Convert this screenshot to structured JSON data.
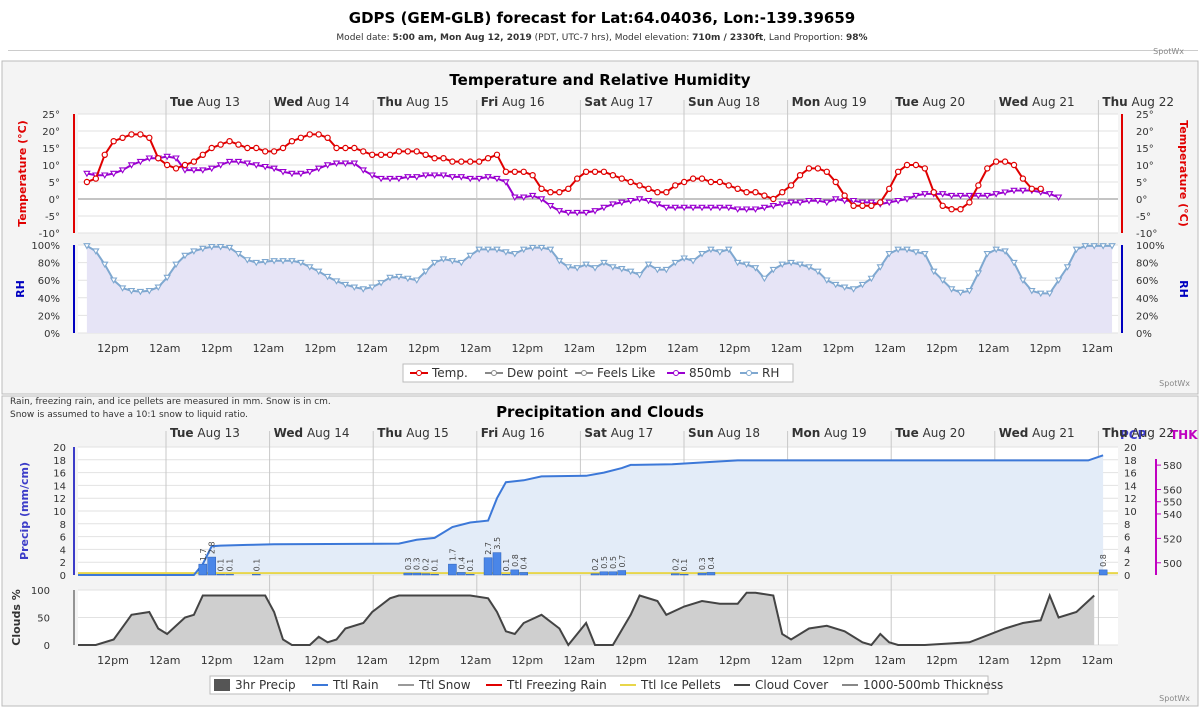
{
  "header": {
    "title": "GDPS (GEM-GLB) forecast for Lat:64.04036, Lon:-139.39659",
    "subtitle_prefix": "Model date: ",
    "model_time": "5:00 am, Mon Aug 12, 2019",
    "subtitle_mid": " (PDT, UTC-7 hrs), Model elevation: ",
    "elevation": "710m / 2330ft",
    "subtitle_mid2": ", Land Proportion: ",
    "land": "98%",
    "credit": "SpotWx"
  },
  "days": [
    {
      "dow": "Tue",
      "date": "Aug 13"
    },
    {
      "dow": "Wed",
      "date": "Aug 14"
    },
    {
      "dow": "Thu",
      "date": "Aug 15"
    },
    {
      "dow": "Fri",
      "date": "Aug 16"
    },
    {
      "dow": "Sat",
      "date": "Aug 17"
    },
    {
      "dow": "Sun",
      "date": "Aug 18"
    },
    {
      "dow": "Mon",
      "date": "Aug 19"
    },
    {
      "dow": "Tue",
      "date": "Aug 20"
    },
    {
      "dow": "Wed",
      "date": "Aug 21"
    },
    {
      "dow": "Thu",
      "date": "Aug 22"
    }
  ],
  "xlabels": [
    "12pm",
    "12am",
    "12pm",
    "12am",
    "12pm",
    "12am",
    "12pm",
    "12am",
    "12pm",
    "12am",
    "12pm",
    "12am",
    "12pm",
    "12am",
    "12pm",
    "12am",
    "12pm",
    "12am",
    "12pm",
    "12am"
  ],
  "colors": {
    "temp": "#e00000",
    "dew": "#888888",
    "feels": "#888888",
    "t850": "#9a00d0",
    "rh": "#7fa8d0",
    "rain": "#3c78d8",
    "snow": "#999999",
    "frz": "#e00000",
    "ice": "#e8d64a",
    "cloud": "#444444",
    "thk": "#888888",
    "thk_axis": "#c000c0",
    "precip_axis": "#3c3cc8",
    "bar": "#4a86e8"
  },
  "chart_data": [
    {
      "type": "line",
      "title": "Temperature and Relative Humidity",
      "x_start_hour": 0,
      "x_end_hour": 249,
      "step_hours": 3,
      "temp_axis": {
        "label": "Temperature (°C)",
        "ticks": [
          "25°",
          "20°",
          "15°",
          "10°",
          "5°",
          "0°",
          "-5°",
          "-10°"
        ],
        "ylim": [
          -10,
          25
        ]
      },
      "rh_axis": {
        "label": "RH",
        "ticks": [
          "100%",
          "80%",
          "60%",
          "40%",
          "20%",
          "0%"
        ],
        "ylim": [
          0,
          100
        ]
      },
      "series": [
        {
          "name": "Temp.",
          "values": [
            5,
            6,
            13,
            17,
            18,
            19,
            19,
            18,
            12,
            10,
            9,
            10,
            11,
            13,
            15,
            16,
            17,
            16,
            15,
            15,
            14,
            14,
            15,
            17,
            18,
            19,
            19,
            18,
            15,
            15,
            15,
            14,
            13,
            13,
            13,
            14,
            14,
            14,
            13,
            12,
            12,
            11,
            11,
            11,
            11,
            12,
            13,
            8,
            8,
            8,
            7,
            3,
            2,
            2,
            3,
            6,
            8,
            8,
            8,
            7,
            6,
            5,
            4,
            3,
            2,
            2,
            4,
            5,
            6,
            6,
            5,
            5,
            4,
            3,
            2,
            2,
            1,
            0,
            2,
            4,
            7,
            9,
            9,
            8,
            5,
            1,
            -2,
            -2,
            -2,
            -1,
            3,
            8,
            10,
            10,
            9,
            2,
            -2,
            -3,
            -3,
            -1,
            4,
            9,
            11,
            11,
            10,
            6,
            3,
            3
          ]
        },
        {
          "name": "Dew point",
          "values": []
        },
        {
          "name": "Feels Like",
          "values": []
        },
        {
          "name": "850mb",
          "values": [
            7.5,
            7,
            7,
            7.5,
            8.5,
            10,
            11,
            12,
            12,
            12.5,
            12,
            8.5,
            8.5,
            8.5,
            9,
            10,
            11,
            11,
            10.5,
            10,
            9.5,
            9,
            8,
            7.5,
            7.5,
            8,
            9,
            10,
            10.5,
            10.5,
            10.5,
            8.5,
            7,
            6,
            6,
            6,
            6.5,
            6.5,
            7,
            7,
            7,
            6.5,
            6.5,
            6,
            6,
            6.5,
            6,
            5,
            0.5,
            0.5,
            1,
            0,
            -2,
            -3.5,
            -4,
            -4,
            -4,
            -3.5,
            -2.5,
            -1.5,
            -1,
            -0.5,
            0,
            -0.5,
            -1.5,
            -2.5,
            -2.5,
            -2.5,
            -2.5,
            -2.5,
            -2.5,
            -2.5,
            -2.5,
            -3,
            -3,
            -3,
            -2.5,
            -2,
            -1.5,
            -1,
            -1,
            -0.5,
            -0.5,
            -1,
            0,
            -0.5,
            -0.5,
            -1,
            -1,
            -1.5,
            -1,
            -0.5,
            0,
            1,
            1.5,
            1.5,
            1.5,
            1,
            1,
            1,
            1,
            1,
            1.5,
            2,
            2.5,
            2.5,
            2.5,
            2,
            1.5,
            0.5
          ]
        },
        {
          "name": "RH",
          "values": [
            99,
            93,
            78,
            60,
            51,
            48,
            47,
            48,
            52,
            63,
            78,
            88,
            93,
            96,
            98,
            98,
            97,
            90,
            83,
            80,
            81,
            82,
            82,
            82,
            80,
            75,
            70,
            64,
            59,
            55,
            52,
            50,
            52,
            57,
            63,
            64,
            62,
            60,
            70,
            80,
            84,
            82,
            80,
            88,
            95,
            95,
            95,
            92,
            90,
            95,
            97,
            97,
            95,
            82,
            75,
            74,
            78,
            74,
            80,
            75,
            73,
            70,
            66,
            78,
            72,
            72,
            80,
            85,
            82,
            90,
            95,
            92,
            95,
            80,
            78,
            74,
            62,
            72,
            78,
            80,
            78,
            75,
            70,
            60,
            55,
            52,
            50,
            55,
            62,
            75,
            90,
            95,
            95,
            92,
            90,
            70,
            60,
            50,
            46,
            48,
            68,
            90,
            95,
            93,
            80,
            60,
            48,
            45,
            45,
            60,
            75,
            95,
            99,
            99,
            99,
            99
          ]
        }
      ]
    },
    {
      "type": "bar",
      "title": "Precipitation and Clouds",
      "notes": [
        "Rain, freezing rain, and ice pellets are measured in mm. Snow is in cm.",
        "Snow is assumed to have a 10:1 snow to liquid ratio."
      ],
      "precip_axis": {
        "label": "Precip (mm/cm)",
        "ticks": [
          "20",
          "18",
          "16",
          "14",
          "12",
          "10",
          "8",
          "6",
          "4",
          "2",
          "0"
        ],
        "ylim": [
          0,
          20
        ]
      },
      "pcp_label": "PCP",
      "thk_axis": {
        "label": "THK",
        "ticks": [
          "580",
          "560",
          "550",
          "540",
          "520",
          "500"
        ],
        "values": [
          580,
          560,
          550,
          540,
          520,
          500
        ]
      },
      "clouds_axis": {
        "label": "Clouds %",
        "ticks": [
          "100",
          "50",
          "0"
        ],
        "ylim": [
          0,
          100
        ]
      },
      "bars": [
        {
          "hour": 42,
          "value": 1.7,
          "label": "1.7"
        },
        {
          "hour": 45,
          "value": 2.8,
          "label": "2.8"
        },
        {
          "hour": 48,
          "value": 0.1,
          "label": "0.1"
        },
        {
          "hour": 51,
          "value": 0.1,
          "label": "0.1"
        },
        {
          "hour": 60,
          "value": 0.1,
          "label": "0.1"
        },
        {
          "hour": 111,
          "value": 0.3,
          "label": "0.3"
        },
        {
          "hour": 114,
          "value": 0.3,
          "label": "0.3"
        },
        {
          "hour": 117,
          "value": 0.2,
          "label": "0.2"
        },
        {
          "hour": 120,
          "value": 0.1,
          "label": "0.1"
        },
        {
          "hour": 126,
          "value": 1.7,
          "label": "1.7"
        },
        {
          "hour": 129,
          "value": 0.4,
          "label": "0.4"
        },
        {
          "hour": 132,
          "value": 0.1,
          "label": "0.1"
        },
        {
          "hour": 138,
          "value": 2.7,
          "label": "2.7"
        },
        {
          "hour": 141,
          "value": 3.5,
          "label": "3.5"
        },
        {
          "hour": 144,
          "value": 0.1,
          "label": "0.1"
        },
        {
          "hour": 147,
          "value": 0.8,
          "label": "0.8"
        },
        {
          "hour": 150,
          "value": 0.4,
          "label": "0.4"
        },
        {
          "hour": 174,
          "value": 0.2,
          "label": "0.2"
        },
        {
          "hour": 177,
          "value": 0.5,
          "label": "0.5"
        },
        {
          "hour": 180,
          "value": 0.5,
          "label": "0.5"
        },
        {
          "hour": 183,
          "value": 0.7,
          "label": "0.7"
        },
        {
          "hour": 201,
          "value": 0.2,
          "label": "0.2"
        },
        {
          "hour": 204,
          "value": 0.1,
          "label": "0.1"
        },
        {
          "hour": 210,
          "value": 0.3,
          "label": "0.3"
        },
        {
          "hour": 213,
          "value": 0.4,
          "label": "0.4"
        },
        {
          "hour": 345,
          "value": 0.8,
          "label": "0.8"
        }
      ],
      "ttl_rain": [
        [
          0,
          0
        ],
        [
          39,
          0
        ],
        [
          42,
          1.7
        ],
        [
          45,
          4.5
        ],
        [
          48,
          4.6
        ],
        [
          57,
          4.7
        ],
        [
          66,
          4.8
        ],
        [
          108,
          4.9
        ],
        [
          114,
          5.5
        ],
        [
          120,
          5.8
        ],
        [
          126,
          7.5
        ],
        [
          132,
          8.2
        ],
        [
          138,
          8.5
        ],
        [
          141,
          12.0
        ],
        [
          144,
          14.5
        ],
        [
          150,
          14.8
        ],
        [
          156,
          15.4
        ],
        [
          171,
          15.5
        ],
        [
          177,
          16.0
        ],
        [
          183,
          16.7
        ],
        [
          186,
          17.2
        ],
        [
          200,
          17.3
        ],
        [
          214,
          17.7
        ],
        [
          222,
          17.9
        ],
        [
          340,
          17.9
        ],
        [
          345,
          18.7
        ]
      ],
      "cloud_cover": [
        [
          0,
          0
        ],
        [
          6,
          0
        ],
        [
          12,
          10
        ],
        [
          18,
          55
        ],
        [
          24,
          60
        ],
        [
          27,
          30
        ],
        [
          30,
          20
        ],
        [
          36,
          50
        ],
        [
          39,
          55
        ],
        [
          42,
          90
        ],
        [
          48,
          90
        ],
        [
          63,
          90
        ],
        [
          66,
          60
        ],
        [
          69,
          10
        ],
        [
          72,
          0
        ],
        [
          78,
          0
        ],
        [
          81,
          15
        ],
        [
          84,
          5
        ],
        [
          87,
          10
        ],
        [
          90,
          30
        ],
        [
          96,
          40
        ],
        [
          99,
          60
        ],
        [
          105,
          85
        ],
        [
          108,
          90
        ],
        [
          126,
          90
        ],
        [
          132,
          90
        ],
        [
          138,
          85
        ],
        [
          141,
          60
        ],
        [
          144,
          25
        ],
        [
          147,
          20
        ],
        [
          150,
          40
        ],
        [
          156,
          55
        ],
        [
          162,
          30
        ],
        [
          165,
          0
        ],
        [
          168,
          20
        ],
        [
          171,
          40
        ],
        [
          174,
          0
        ],
        [
          180,
          0
        ],
        [
          186,
          55
        ],
        [
          189,
          90
        ],
        [
          195,
          80
        ],
        [
          198,
          55
        ],
        [
          204,
          70
        ],
        [
          210,
          80
        ],
        [
          216,
          75
        ],
        [
          222,
          75
        ],
        [
          225,
          95
        ],
        [
          228,
          95
        ],
        [
          234,
          90
        ],
        [
          237,
          20
        ],
        [
          240,
          10
        ],
        [
          246,
          30
        ],
        [
          252,
          35
        ],
        [
          258,
          25
        ],
        [
          264,
          5
        ],
        [
          267,
          0
        ],
        [
          270,
          20
        ],
        [
          273,
          5
        ],
        [
          276,
          0
        ],
        [
          285,
          0
        ],
        [
          300,
          5
        ],
        [
          312,
          30
        ],
        [
          318,
          40
        ],
        [
          324,
          45
        ],
        [
          327,
          90
        ],
        [
          330,
          50
        ],
        [
          336,
          60
        ],
        [
          342,
          90
        ]
      ]
    }
  ],
  "legend1": [
    "Temp.",
    "Dew point",
    "Feels Like",
    "850mb",
    "RH"
  ],
  "legend2": [
    "3hr Precip",
    "Ttl Rain",
    "Ttl Snow",
    "Ttl Freezing Rain",
    "Ttl Ice Pellets",
    "Cloud Cover",
    "1000-500mb Thickness"
  ]
}
